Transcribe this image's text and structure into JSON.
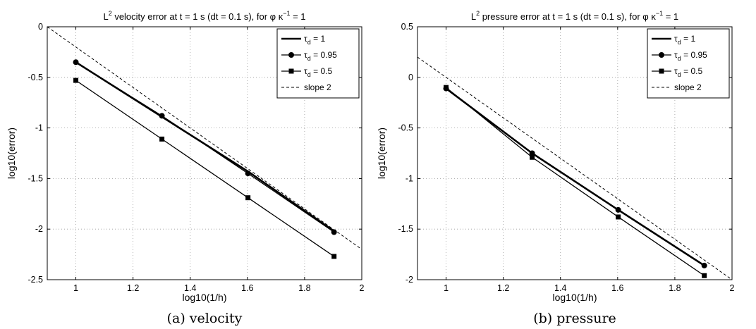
{
  "chart_data": [
    {
      "type": "line",
      "title_main": "L",
      "title_sup": "2",
      "title_rest": " velocity error at t = 1 s (dt = 0.1 s), for φ κ",
      "title_sup2": "−1",
      "title_end": " = 1",
      "xlabel": "log10(1/h)",
      "ylabel": "log10(error)",
      "xlim": [
        0.9,
        2.0
      ],
      "ylim": [
        -2.5,
        0.0
      ],
      "xticks": [
        1,
        1.2,
        1.4,
        1.6,
        1.8,
        2
      ],
      "xtick_labels": [
        "1",
        "1.2",
        "1.4",
        "1.6",
        "1.8",
        "2"
      ],
      "yticks": [
        -2.5,
        -2,
        -1.5,
        -1,
        -0.5,
        0
      ],
      "ytick_labels": [
        "-2.5",
        "-2",
        "-1.5",
        "-1",
        "-0.5",
        "0"
      ],
      "grid": true,
      "legend_position": "top-right",
      "caption": "(a)  velocity",
      "series": [
        {
          "name": "τ_d = 1",
          "legend_main": "τ",
          "legend_sub": "d",
          "legend_rest": " = 1",
          "marker": "none",
          "style": "solid",
          "width": 2.6,
          "x": [
            1,
            1.301,
            1.602,
            1.903
          ],
          "y": [
            -0.35,
            -0.89,
            -1.43,
            -2.02
          ]
        },
        {
          "name": "τ_d = 0.95",
          "legend_main": "τ",
          "legend_sub": "d",
          "legend_rest": " = 0.95",
          "marker": "circle",
          "style": "solid",
          "width": 1.3,
          "x": [
            1,
            1.301,
            1.602,
            1.903
          ],
          "y": [
            -0.35,
            -0.88,
            -1.45,
            -2.03
          ]
        },
        {
          "name": "τ_d = 0.5",
          "legend_main": "τ",
          "legend_sub": "d",
          "legend_rest": " = 0.5",
          "marker": "square",
          "style": "solid",
          "width": 1.3,
          "x": [
            1,
            1.301,
            1.602,
            1.903
          ],
          "y": [
            -0.53,
            -1.11,
            -1.69,
            -2.27
          ]
        },
        {
          "name": "slope 2",
          "legend_main": "slope 2",
          "legend_sub": "",
          "legend_rest": "",
          "marker": "none",
          "style": "dashed",
          "width": 1,
          "x": [
            0.9,
            2.0
          ],
          "y": [
            0.0,
            -2.2
          ]
        }
      ]
    },
    {
      "type": "line",
      "title_main": "L",
      "title_sup": "2",
      "title_rest": " pressure error at t = 1 s (dt = 0.1 s), for φ κ",
      "title_sup2": "−1",
      "title_end": " = 1",
      "xlabel": "log10(1/h)",
      "ylabel": "log10(error)",
      "xlim": [
        0.9,
        2.0
      ],
      "ylim": [
        -2.0,
        0.5
      ],
      "xticks": [
        1,
        1.2,
        1.4,
        1.6,
        1.8,
        2
      ],
      "xtick_labels": [
        "1",
        "1.2",
        "1.4",
        "1.6",
        "1.8",
        "2"
      ],
      "yticks": [
        -2,
        -1.5,
        -1,
        -0.5,
        0,
        0.5
      ],
      "ytick_labels": [
        "-2",
        "-1.5",
        "-1",
        "-0.5",
        "0",
        "0.5"
      ],
      "grid": true,
      "legend_position": "top-right",
      "caption": "(b)  pressure",
      "series": [
        {
          "name": "τ_d = 1",
          "legend_main": "τ",
          "legend_sub": "d",
          "legend_rest": " = 1",
          "marker": "none",
          "style": "solid",
          "width": 2.6,
          "x": [
            1,
            1.301,
            1.602,
            1.903
          ],
          "y": [
            -0.11,
            -0.75,
            -1.31,
            -1.86
          ]
        },
        {
          "name": "τ_d = 0.95",
          "legend_main": "τ",
          "legend_sub": "d",
          "legend_rest": " = 0.95",
          "marker": "circle",
          "style": "solid",
          "width": 1.3,
          "x": [
            1,
            1.301,
            1.602,
            1.903
          ],
          "y": [
            -0.11,
            -0.75,
            -1.31,
            -1.86
          ]
        },
        {
          "name": "τ_d = 0.5",
          "legend_main": "τ",
          "legend_sub": "d",
          "legend_rest": " = 0.5",
          "marker": "square",
          "style": "solid",
          "width": 1.3,
          "x": [
            1,
            1.301,
            1.602,
            1.903
          ],
          "y": [
            -0.1,
            -0.79,
            -1.38,
            -1.96
          ]
        },
        {
          "name": "slope 2",
          "legend_main": "slope 2",
          "legend_sub": "",
          "legend_rest": "",
          "marker": "none",
          "style": "dashed",
          "width": 1,
          "x": [
            0.9,
            2.0
          ],
          "y": [
            0.2,
            -2.0
          ]
        }
      ]
    }
  ]
}
